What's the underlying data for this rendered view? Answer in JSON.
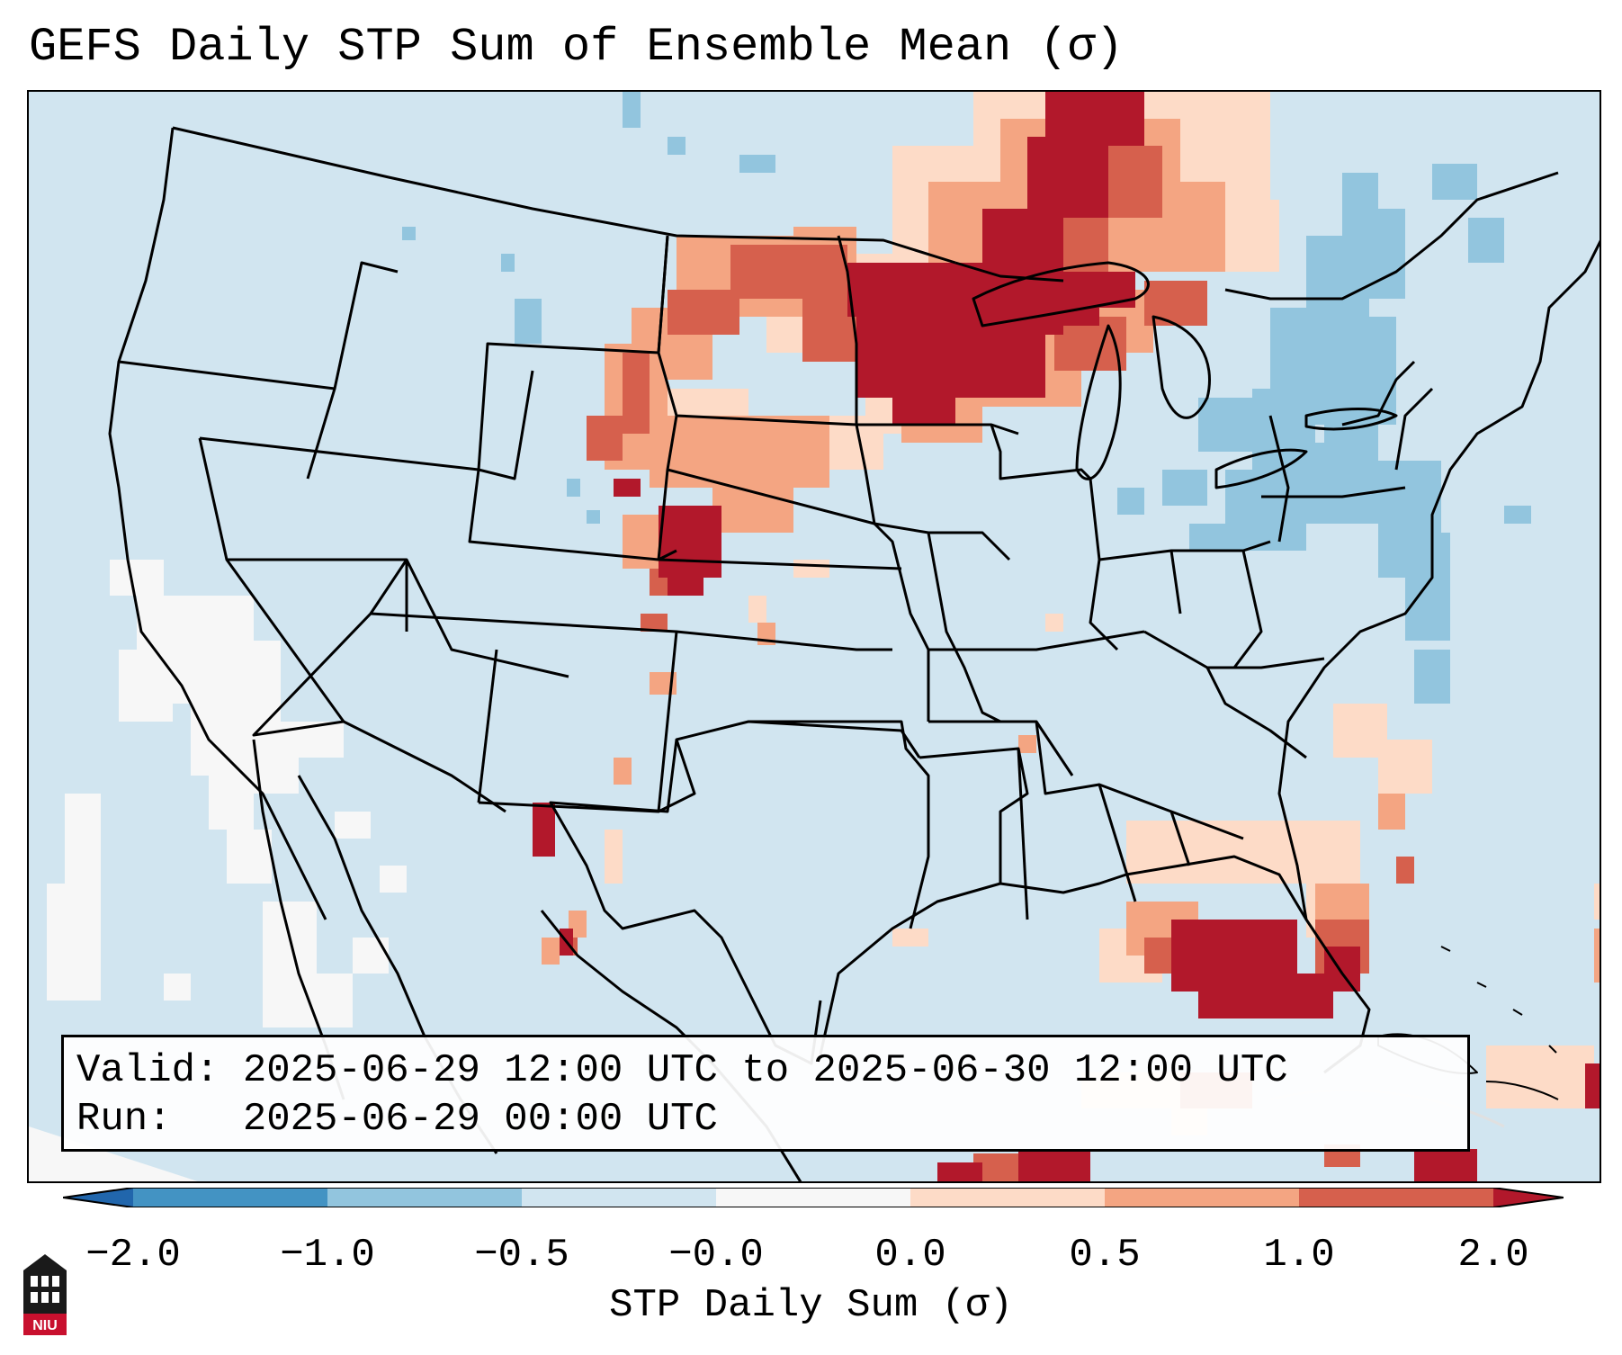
{
  "title": "GEFS Daily STP Sum of Ensemble Mean (σ)",
  "info": {
    "valid_label": "Valid:",
    "valid_value": "2025-06-29 12:00 UTC to 2025-06-30 12:00 UTC",
    "run_label": "Run:",
    "run_value": "2025-06-29 00:00 UTC"
  },
  "colorbar": {
    "label": "STP Daily Sum (σ)",
    "ticks": [
      "−2.0",
      "−1.0",
      "−0.5",
      "−0.0",
      "0.0",
      "0.5",
      "1.0",
      "2.0"
    ],
    "colors": [
      "#4393c3",
      "#92c5de",
      "#d1e5f0",
      "#f7f7f7",
      "#fddbc7",
      "#f4a582",
      "#d6604d",
      "#b2182b"
    ],
    "under_color": "#2166ac",
    "over_color": "#b2182b"
  },
  "map": {
    "background_value": "-0.5 to 0.0",
    "background_color": "#d1e5f0",
    "regions": [
      {
        "name": "upper-midwest-high",
        "level": "≥1.0"
      },
      {
        "name": "northern-plains",
        "level": "0.5–1.0"
      },
      {
        "name": "florida-gulf",
        "level": "≥1.0"
      },
      {
        "name": "northeast-low",
        "level": "−1.0 to −0.5"
      },
      {
        "name": "pacific-near-zero",
        "level": "−0.0 to 0.0"
      }
    ]
  },
  "logo": {
    "text": "NIU",
    "icon": "university-building-icon"
  }
}
